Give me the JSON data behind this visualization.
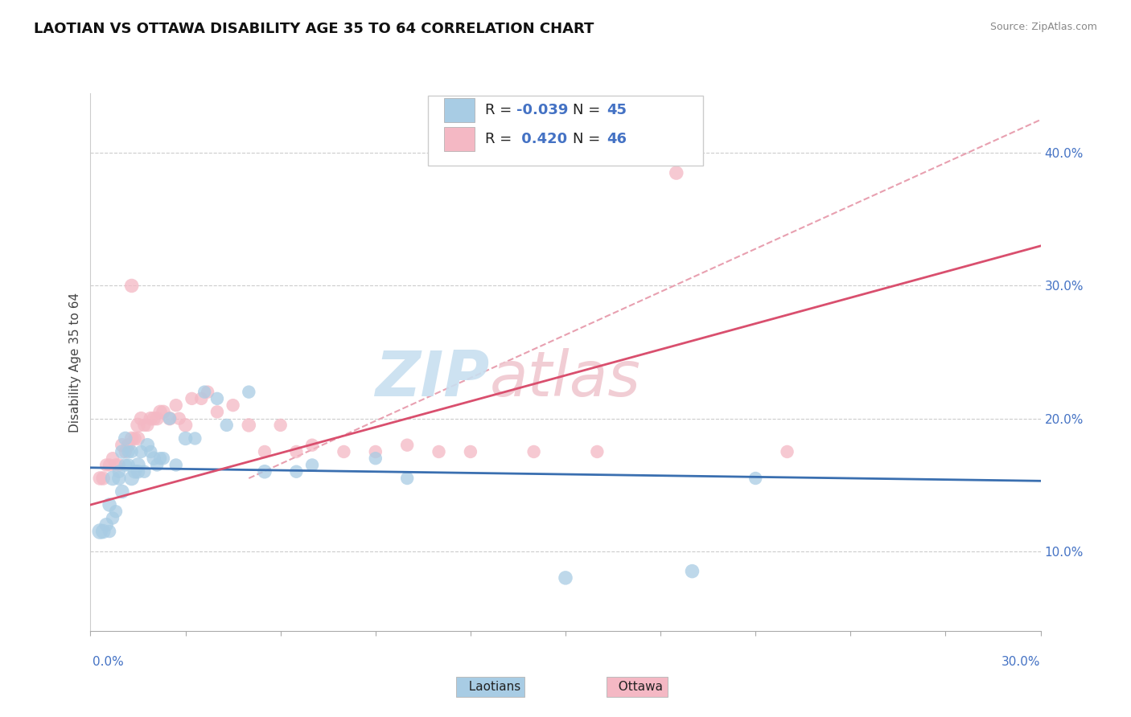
{
  "title": "LAOTIAN VS OTTAWA DISABILITY AGE 35 TO 64 CORRELATION CHART",
  "source": "Source: ZipAtlas.com",
  "ylabel": "Disability Age 35 to 64",
  "right_yticks": [
    "10.0%",
    "20.0%",
    "30.0%",
    "40.0%"
  ],
  "right_ytick_vals": [
    0.1,
    0.2,
    0.3,
    0.4
  ],
  "xmin": 0.0,
  "xmax": 0.3,
  "ymin": 0.04,
  "ymax": 0.445,
  "legend_R1": "-0.039",
  "legend_N1": "45",
  "legend_R2": "0.420",
  "legend_N2": "46",
  "blue_color": "#a8cce4",
  "pink_color": "#f4b8c4",
  "blue_line_color": "#3a6fb0",
  "pink_line_color": "#d94f6e",
  "diagonal_line_color": "#e8a0b0",
  "text_blue": "#4472c4",
  "text_dark": "#222222",
  "laotians_x": [
    0.003,
    0.004,
    0.005,
    0.006,
    0.006,
    0.007,
    0.007,
    0.008,
    0.009,
    0.009,
    0.01,
    0.01,
    0.011,
    0.011,
    0.012,
    0.012,
    0.013,
    0.013,
    0.014,
    0.015,
    0.015,
    0.016,
    0.017,
    0.018,
    0.019,
    0.02,
    0.021,
    0.022,
    0.023,
    0.025,
    0.027,
    0.03,
    0.033,
    0.036,
    0.04,
    0.043,
    0.05,
    0.055,
    0.065,
    0.07,
    0.09,
    0.1,
    0.15,
    0.19,
    0.21
  ],
  "laotians_y": [
    0.115,
    0.115,
    0.12,
    0.115,
    0.135,
    0.125,
    0.155,
    0.13,
    0.155,
    0.16,
    0.145,
    0.175,
    0.165,
    0.185,
    0.165,
    0.175,
    0.155,
    0.175,
    0.16,
    0.165,
    0.16,
    0.175,
    0.16,
    0.18,
    0.175,
    0.17,
    0.165,
    0.17,
    0.17,
    0.2,
    0.165,
    0.185,
    0.185,
    0.22,
    0.215,
    0.195,
    0.22,
    0.16,
    0.16,
    0.165,
    0.17,
    0.155,
    0.08,
    0.085,
    0.155
  ],
  "laotians_size": [
    200,
    180,
    160,
    140,
    160,
    140,
    180,
    140,
    160,
    140,
    160,
    160,
    140,
    160,
    140,
    140,
    180,
    140,
    160,
    180,
    160,
    140,
    140,
    160,
    140,
    160,
    140,
    140,
    140,
    140,
    140,
    160,
    140,
    140,
    140,
    140,
    140,
    160,
    140,
    140,
    140,
    140,
    160,
    160,
    140
  ],
  "ottawa_x": [
    0.003,
    0.004,
    0.005,
    0.006,
    0.007,
    0.008,
    0.009,
    0.01,
    0.011,
    0.012,
    0.013,
    0.013,
    0.014,
    0.015,
    0.015,
    0.016,
    0.017,
    0.018,
    0.019,
    0.02,
    0.021,
    0.022,
    0.023,
    0.025,
    0.027,
    0.028,
    0.03,
    0.032,
    0.035,
    0.037,
    0.04,
    0.045,
    0.05,
    0.055,
    0.06,
    0.065,
    0.07,
    0.08,
    0.09,
    0.1,
    0.11,
    0.12,
    0.14,
    0.16,
    0.185,
    0.22
  ],
  "ottawa_y": [
    0.155,
    0.155,
    0.165,
    0.165,
    0.17,
    0.165,
    0.165,
    0.18,
    0.175,
    0.18,
    0.3,
    0.185,
    0.185,
    0.195,
    0.185,
    0.2,
    0.195,
    0.195,
    0.2,
    0.2,
    0.2,
    0.205,
    0.205,
    0.2,
    0.21,
    0.2,
    0.195,
    0.215,
    0.215,
    0.22,
    0.205,
    0.21,
    0.195,
    0.175,
    0.195,
    0.175,
    0.18,
    0.175,
    0.175,
    0.18,
    0.175,
    0.175,
    0.175,
    0.175,
    0.385,
    0.175
  ],
  "ottawa_size": [
    160,
    160,
    140,
    140,
    140,
    140,
    140,
    160,
    140,
    160,
    160,
    160,
    140,
    180,
    160,
    160,
    140,
    140,
    160,
    160,
    160,
    160,
    160,
    160,
    140,
    140,
    160,
    140,
    140,
    140,
    140,
    140,
    160,
    140,
    140,
    140,
    140,
    140,
    140,
    140,
    140,
    140,
    140,
    140,
    160,
    140
  ]
}
